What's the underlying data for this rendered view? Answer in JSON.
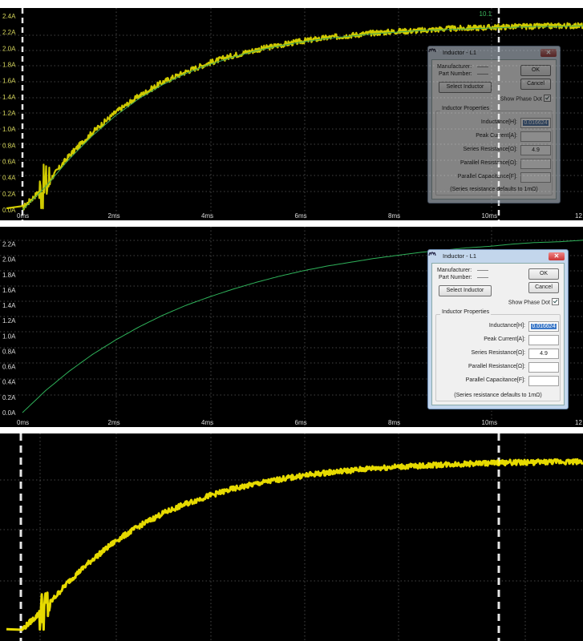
{
  "chart_data": [
    {
      "type": "line",
      "style": "oscilloscope-measured",
      "x": [
        0,
        0.5,
        1,
        1.5,
        2,
        2.5,
        3,
        3.5,
        4,
        4.5,
        5,
        5.5,
        6,
        6.5,
        7,
        7.5,
        8,
        8.5,
        9,
        9.5,
        10,
        10.5,
        11,
        11.5,
        12
      ],
      "series": [
        {
          "values": [
            0.02,
            0.31,
            0.67,
            0.96,
            1.21,
            1.41,
            1.58,
            1.71,
            1.82,
            1.91,
            1.98,
            2.04,
            2.09,
            2.13,
            2.16,
            2.19,
            2.21,
            2.22,
            2.24,
            2.25,
            2.26,
            2.27,
            2.27,
            2.28,
            2.28
          ],
          "color": "#e5e000"
        },
        {
          "values": [
            0.0,
            0.29,
            0.63,
            0.92,
            1.17,
            1.38,
            1.55,
            1.69,
            1.8,
            1.89,
            1.97,
            2.03,
            2.08,
            2.12,
            2.15,
            2.18,
            2.2,
            2.22,
            2.23,
            2.24,
            2.25,
            2.26,
            2.27,
            2.27,
            2.28
          ],
          "color": "#3ea85a"
        }
      ],
      "xticks": [
        "0ms",
        "2ms",
        "4ms",
        "6ms",
        "8ms",
        "10ms",
        "12"
      ],
      "yticks": [
        "0.0A",
        "0.2A",
        "0.4A",
        "0.6A",
        "0.8A",
        "1.0A",
        "1.2A",
        "1.4A",
        "1.6A",
        "1.8A",
        "2.0A",
        "2.2A",
        "2.4A"
      ],
      "xlim": [
        0,
        12
      ],
      "ylim": [
        0,
        2.4
      ],
      "grid": true,
      "annotation": "10.1"
    },
    {
      "type": "line",
      "style": "simulation",
      "x": [
        0,
        0.5,
        1,
        1.5,
        2,
        2.5,
        3,
        3.5,
        4,
        4.5,
        5,
        5.5,
        6,
        6.5,
        7,
        7.5,
        8,
        8.5,
        9,
        9.5,
        10,
        10.5,
        11,
        11.5,
        12
      ],
      "series": [
        {
          "values": [
            0.0,
            0.29,
            0.54,
            0.76,
            0.95,
            1.12,
            1.27,
            1.4,
            1.51,
            1.61,
            1.7,
            1.78,
            1.85,
            1.91,
            1.96,
            2.01,
            2.05,
            2.09,
            2.12,
            2.15,
            2.17,
            2.2,
            2.22,
            2.23,
            2.25
          ],
          "color": "#2fb25a"
        }
      ],
      "xticks": [
        "0ms",
        "2ms",
        "4ms",
        "6ms",
        "8ms",
        "10ms",
        "12"
      ],
      "yticks": [
        "0.0A",
        "0.2A",
        "0.4A",
        "0.6A",
        "0.8A",
        "1.0A",
        "1.2A",
        "1.4A",
        "1.6A",
        "1.8A",
        "2.0A",
        "2.2A"
      ],
      "xlim": [
        0,
        12
      ],
      "ylim": [
        0,
        2.3
      ],
      "grid": true
    },
    {
      "type": "line",
      "style": "oscilloscope-capture",
      "x": [
        0,
        0.5,
        1,
        1.5,
        2,
        2.5,
        3,
        3.5,
        4,
        4.5,
        5,
        5.5,
        6,
        6.5,
        7,
        7.5,
        8,
        8.5,
        9,
        9.5,
        10,
        10.5,
        11,
        11.5,
        12
      ],
      "series": [
        {
          "values": [
            0.02,
            0.31,
            0.67,
            0.96,
            1.21,
            1.41,
            1.58,
            1.71,
            1.82,
            1.91,
            1.98,
            2.04,
            2.09,
            2.13,
            2.16,
            2.19,
            2.21,
            2.22,
            2.24,
            2.25,
            2.26,
            2.27,
            2.27,
            2.28,
            2.28
          ],
          "color": "#fff200"
        }
      ],
      "xlim": [
        0,
        12
      ],
      "ylim": [
        0,
        2.4
      ],
      "grid": true
    }
  ],
  "dialog": {
    "title": "Inductor - L1",
    "manufacturer_label": "Manufacturer:",
    "manufacturer_value": "——",
    "part_number_label": "Part Number:",
    "part_number_value": "——",
    "ok_label": "OK",
    "cancel_label": "Cancel",
    "select_label": "Select Inductor",
    "show_phase_label": "Show Phase Dot",
    "show_phase_checked": true,
    "group_label": "Inductor Properties",
    "fields": [
      {
        "label": "Inductance[H]:",
        "value": "0.016624",
        "selected": true
      },
      {
        "label": "Peak Current[A]:",
        "value": ""
      },
      {
        "label": "Series Resistance[Ω]:",
        "value": "4.9"
      },
      {
        "label": "Parallel Resistance[Ω]:",
        "value": ""
      },
      {
        "label": "Parallel Capacitance[F]:",
        "value": ""
      }
    ],
    "footnote": "(Series resistance defaults to 1mΩ)"
  },
  "colors": {
    "background": "#000000",
    "grid": "#5a5a5a",
    "scope_trace": "#e5e000",
    "sim_trace": "#2fb25a",
    "cursor": "#e6e6e6"
  }
}
